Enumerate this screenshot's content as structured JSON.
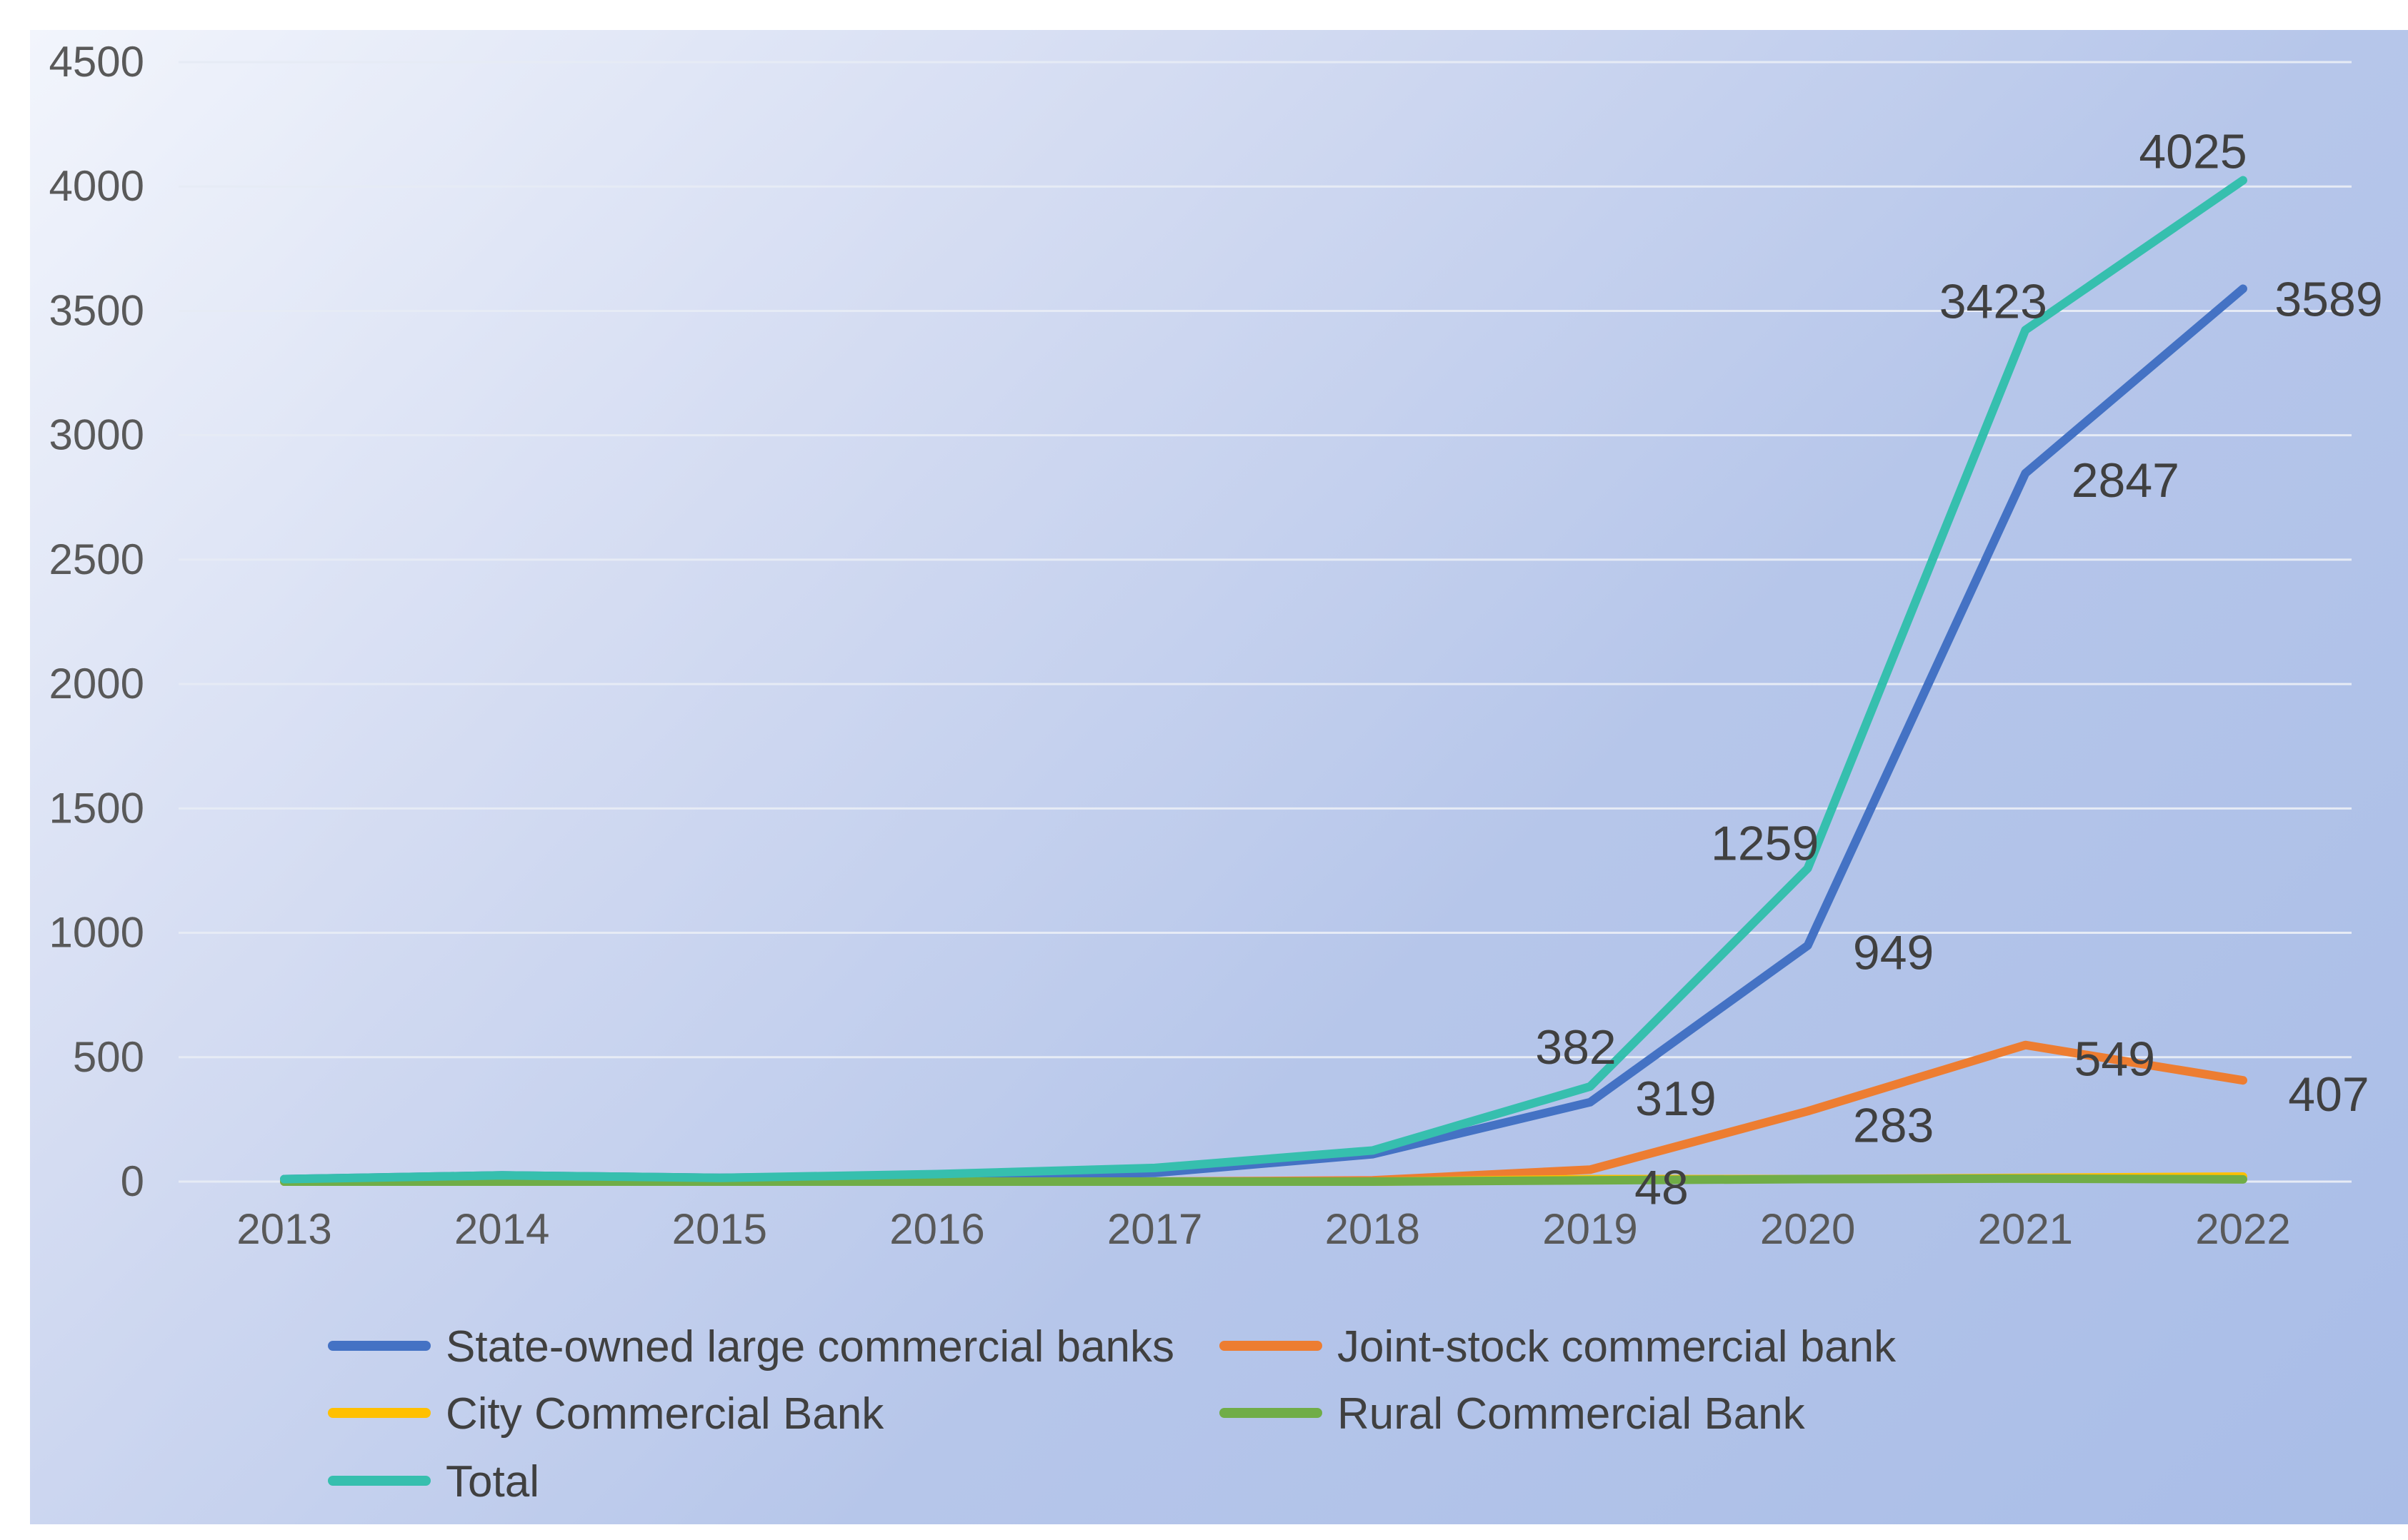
{
  "chart_data": {
    "type": "line",
    "title": "",
    "xlabel": "",
    "ylabel": "",
    "categories": [
      "2013",
      "2014",
      "2015",
      "2016",
      "2017",
      "2018",
      "2019",
      "2020",
      "2021",
      "2022"
    ],
    "ylim": [
      0,
      4500
    ],
    "yticks": [
      0,
      500,
      1000,
      1500,
      2000,
      2500,
      3000,
      3500,
      4000,
      4500
    ],
    "grid": true,
    "legend_position": "bottom",
    "series": [
      {
        "name": "State-owned large commercial banks",
        "color": "#4472c4",
        "values": [
          10,
          25,
          15,
          25,
          35,
          110,
          319,
          949,
          2847,
          3589
        ],
        "labels": {
          "6": "319",
          "7": "949",
          "8": "2847",
          "9": "3589"
        }
      },
      {
        "name": "Joint-stock commercial bank",
        "color": "#ed7d31",
        "values": [
          0,
          0,
          0,
          0,
          0,
          5,
          48,
          283,
          549,
          407
        ],
        "labels": {
          "6": "48",
          "7": "283",
          "8": "549",
          "9": "407"
        }
      },
      {
        "name": "City Commercial Bank",
        "color": "#ffc000",
        "values": [
          0,
          0,
          0,
          0,
          0,
          0,
          10,
          10,
          15,
          20
        ],
        "labels": {}
      },
      {
        "name": "Rural Commercial Bank",
        "color": "#70ad47",
        "values": [
          0,
          0,
          0,
          0,
          0,
          0,
          5,
          10,
          12,
          9
        ],
        "labels": {}
      },
      {
        "name": "Total",
        "color": "#36bfae",
        "values": [
          10,
          25,
          15,
          30,
          55,
          125,
          382,
          1259,
          3423,
          4025
        ],
        "labels": {
          "6": "382",
          "7": "1259",
          "8": "3423",
          "9": "4025"
        }
      }
    ]
  }
}
